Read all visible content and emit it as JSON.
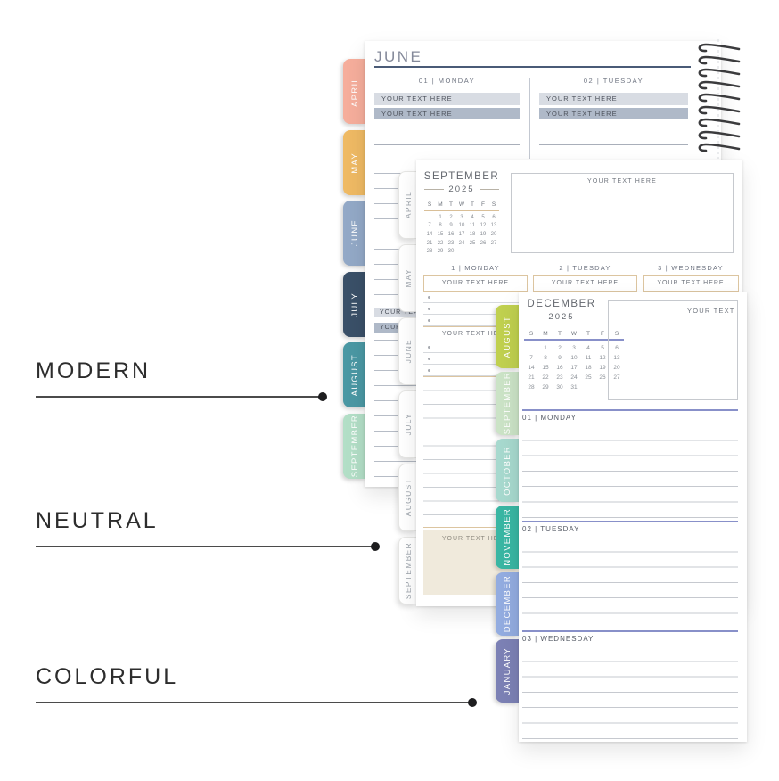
{
  "placeholder": "YOUR TEXT HERE",
  "style_labels": {
    "modern": "MODERN",
    "neutral": "NEUTRAL",
    "colorful": "COLORFUL"
  },
  "modern": {
    "title": "JUNE",
    "days": [
      "01 | MONDAY",
      "02 | TUESDAY"
    ],
    "tabs": [
      {
        "label": "APRIL",
        "color": "#F6AE9C"
      },
      {
        "label": "MAY",
        "color": "#EFBA64"
      },
      {
        "label": "JUNE",
        "color": "#93A9C7"
      },
      {
        "label": "JULY",
        "color": "#3A5068"
      },
      {
        "label": "AUGUST",
        "color": "#4B98A4"
      },
      {
        "label": "SEPTEMBER",
        "color": "#B3DFC7"
      }
    ],
    "colors": {
      "underline": "#4A5B77",
      "bar_light": "#D8DCE3",
      "bar_dark": "#AFB9C8"
    }
  },
  "neutral": {
    "title": "SEPTEMBER",
    "year": "2025",
    "weekdays": [
      "S",
      "M",
      "T",
      "W",
      "T",
      "F",
      "S"
    ],
    "calendar_cells": [
      "",
      "1",
      "2",
      "3",
      "4",
      "5",
      "6",
      "7",
      "8",
      "9",
      "10",
      "11",
      "12",
      "13",
      "14",
      "15",
      "16",
      "17",
      "18",
      "19",
      "20",
      "21",
      "22",
      "23",
      "24",
      "25",
      "26",
      "27",
      "28",
      "29",
      "30",
      "",
      "",
      "",
      ""
    ],
    "days": [
      "1 | MONDAY",
      "2 | TUESDAY",
      "3 | WEDNESDAY"
    ],
    "tabs": [
      "APRIL",
      "MAY",
      "JUNE",
      "JULY",
      "AUGUST",
      "SEPTEMBER"
    ],
    "colors": {
      "accent": "#D9BF98",
      "beige": "#F0EADC"
    }
  },
  "colorful": {
    "title": "DECEMBER",
    "year": "2025",
    "weekdays": [
      "S",
      "M",
      "T",
      "W",
      "T",
      "F",
      "S"
    ],
    "calendar_cells": [
      "",
      "1",
      "2",
      "3",
      "4",
      "5",
      "6",
      "7",
      "8",
      "9",
      "10",
      "11",
      "12",
      "13",
      "14",
      "15",
      "16",
      "17",
      "18",
      "19",
      "20",
      "21",
      "22",
      "23",
      "24",
      "25",
      "26",
      "27",
      "28",
      "29",
      "30",
      "31",
      "",
      "",
      ""
    ],
    "days": [
      "01 | MONDAY",
      "02 | TUESDAY",
      "03 | WEDNESDAY"
    ],
    "tabs": [
      {
        "label": "AUGUST",
        "color": "#C0D04F"
      },
      {
        "label": "SEPTEMBER",
        "color": "#CBE3C6"
      },
      {
        "label": "OCTOBER",
        "color": "#A7D9CE"
      },
      {
        "label": "NOVEMBER",
        "color": "#39B6A3"
      },
      {
        "label": "DECEMBER",
        "color": "#93ACE0"
      },
      {
        "label": "JANUARY",
        "color": "#7C81B5"
      }
    ],
    "colors": {
      "accent": "#8890C9"
    }
  }
}
